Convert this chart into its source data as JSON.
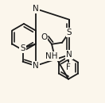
{
  "background_color": "#fbf6ec",
  "line_color": "#1a1a1a",
  "line_width": 1.3,
  "atom_S1": {
    "text": "S",
    "fontsize": 7.5
  },
  "atom_N1": {
    "text": "N",
    "fontsize": 7.5
  },
  "atom_N2": {
    "text": "N",
    "fontsize": 7.5
  },
  "atom_S2": {
    "text": "S",
    "fontsize": 7.5
  },
  "atom_O": {
    "text": "O",
    "fontsize": 7.5
  },
  "atom_NH": {
    "text": "NH",
    "fontsize": 7.5
  },
  "atom_F": {
    "text": "F",
    "fontsize": 7.5
  }
}
